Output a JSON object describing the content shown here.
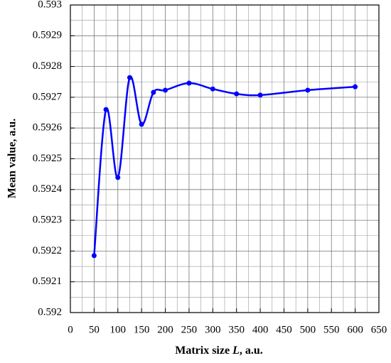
{
  "chart_data": {
    "type": "line",
    "x_label": [
      "Matrix size ",
      "L",
      ", a.u."
    ],
    "y_label": "Mean value, a.u.",
    "x": [
      50,
      75,
      100,
      125,
      150,
      175,
      200,
      250,
      300,
      350,
      400,
      500,
      600
    ],
    "series": [
      {
        "color": "#0000ff",
        "values": [
          0.592185,
          0.59266,
          0.592439,
          0.592764,
          0.592612,
          0.592716,
          0.592723,
          0.592746,
          0.592727,
          0.592711,
          0.592707,
          0.592723,
          0.592734
        ]
      }
    ],
    "xlim": [
      0,
      650
    ],
    "xticks": [
      0,
      50,
      100,
      150,
      200,
      250,
      300,
      350,
      400,
      450,
      500,
      550,
      600,
      650
    ],
    "ylim": [
      0.592,
      0.593
    ],
    "yticks": [
      0.592,
      0.5921,
      0.5922,
      0.5923,
      0.5924,
      0.5925,
      0.5926,
      0.5927,
      0.5928,
      0.5929,
      0.593
    ],
    "xminorticks": [
      25,
      75,
      125,
      175,
      225,
      275,
      325,
      375,
      425,
      475,
      525,
      575,
      625
    ],
    "yminorticks": [
      0.59205,
      0.59215,
      0.59225,
      0.59235,
      0.59245,
      0.59255,
      0.59265,
      0.59275,
      0.59285,
      0.59295
    ],
    "grid": true,
    "smooth": true,
    "markers": true
  }
}
